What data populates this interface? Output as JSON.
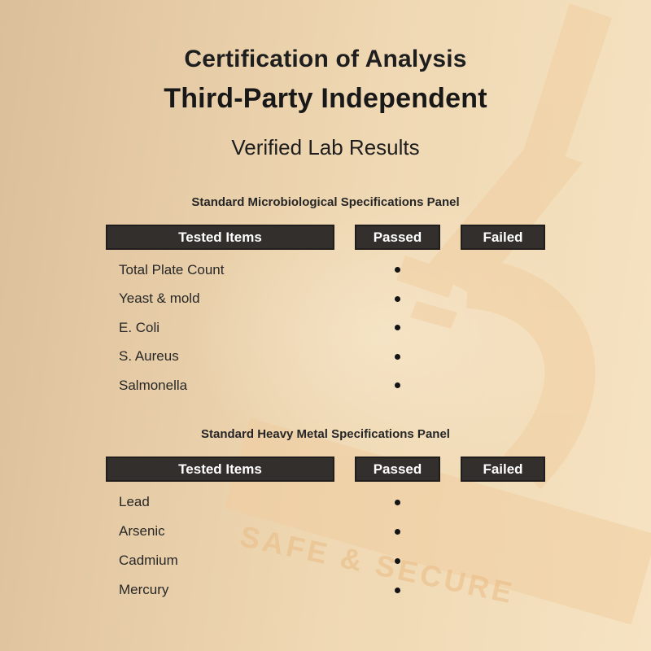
{
  "header": {
    "line1": "Certification of Analysis",
    "line2": "Third-Party Independent",
    "line3": "Verified Lab Results"
  },
  "panels": [
    {
      "title": "Standard Microbiological Specifications Panel",
      "columns": {
        "tested": "Tested Items",
        "passed": "Passed",
        "failed": "Failed"
      },
      "rows": [
        {
          "item": "Total Plate Count",
          "passed": true,
          "failed": false
        },
        {
          "item": "Yeast & mold",
          "passed": true,
          "failed": false
        },
        {
          "item": "E. Coli",
          "passed": true,
          "failed": false
        },
        {
          "item": "S. Aureus",
          "passed": true,
          "failed": false
        },
        {
          "item": "Salmonella",
          "passed": true,
          "failed": false
        }
      ]
    },
    {
      "title": "Standard Heavy Metal Specifications Panel",
      "columns": {
        "tested": "Tested Items",
        "passed": "Passed",
        "failed": "Failed"
      },
      "rows": [
        {
          "item": "Lead",
          "passed": true,
          "failed": false
        },
        {
          "item": "Arsenic",
          "passed": true,
          "failed": false
        },
        {
          "item": "Cadmium",
          "passed": true,
          "failed": false
        },
        {
          "item": "Mercury",
          "passed": true,
          "failed": false
        }
      ]
    }
  ],
  "watermark": {
    "text": "SAFE & SECURE",
    "icon": "microscope"
  },
  "colors": {
    "page_text": "#1e1e1e",
    "header_bar_bg": "#332f2d",
    "header_bar_border": "#201d1c",
    "header_bar_text": "#ffffff",
    "bullet": "#141414",
    "bg_left": "#dbbe9a",
    "bg_mid": "#efd8b3",
    "bg_right": "#f6e3c2",
    "watermark_tint": "#f1cda0"
  }
}
